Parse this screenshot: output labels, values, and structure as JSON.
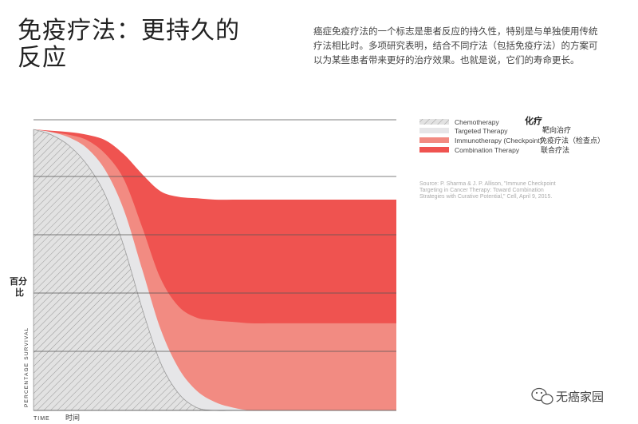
{
  "header": {
    "title": "免疫疗法：更持久的反应",
    "intro": "癌症免疫疗法的一个标志是患者反应的持久性，特别是与单独使用传统疗法相比时。多项研究表明，结合不同疗法（包括免疫疗法）的方案可以为某些患者带来更好的治疗效果。也就是说，它们的寿命更长。"
  },
  "chart_data": {
    "type": "area",
    "title": "",
    "xlabel": "TIME",
    "xlabel_zh": "时间",
    "ylabel": "PERCENTAGE SURVIVAL",
    "ylabel_zh": "百分比",
    "x": [
      0,
      5,
      10,
      15,
      20,
      25,
      30,
      35,
      40,
      45,
      50,
      55,
      60,
      65,
      70,
      75,
      80,
      85,
      90,
      95,
      100
    ],
    "ylim": [
      0,
      100
    ],
    "xlim": [
      0,
      100
    ],
    "grid": "horizontal",
    "series": [
      {
        "name": "Chemotherapy",
        "name_zh": "化疗",
        "color": "#dcdcdc",
        "pattern": "hatch",
        "values": [
          100,
          98,
          94,
          87,
          76,
          58,
          36,
          17,
          6,
          1,
          0,
          0,
          0,
          0,
          0,
          0,
          0,
          0,
          0,
          0,
          0
        ]
      },
      {
        "name": "Targeted Therapy",
        "name_zh": "靶向治疗",
        "color": "#e6e6e8",
        "values": [
          100,
          99,
          97,
          93,
          85,
          71,
          50,
          29,
          15,
          7,
          3,
          1,
          0,
          0,
          0,
          0,
          0,
          0,
          0,
          0,
          0
        ]
      },
      {
        "name": "Immunotherapy (Checkpoint)",
        "name_zh": "免疫疗法（检查点）",
        "color": "#f28b82",
        "values": [
          100,
          99,
          98,
          96,
          91,
          82,
          65,
          47,
          37,
          33,
          32,
          31.5,
          31,
          31,
          31,
          31,
          31,
          31,
          31,
          31,
          31
        ]
      },
      {
        "name": "Combination Therapy",
        "name_zh": "联合疗法",
        "color": "#ef5350",
        "values": [
          100,
          99.5,
          99,
          98,
          96,
          91,
          84,
          78,
          76,
          75.5,
          75,
          75,
          75,
          75,
          75,
          75,
          75,
          75,
          75,
          75,
          75
        ]
      }
    ],
    "source": "Source: P. Sharma & J. P. Allison, \"Immune Checkpoint Targeting in Cancer Therapy: Toward Combination Strategies with Curative Potential,\" Cell, April 9, 2015."
  },
  "watermark": {
    "text": "无癌家园",
    "icon": "wechat-icon"
  }
}
